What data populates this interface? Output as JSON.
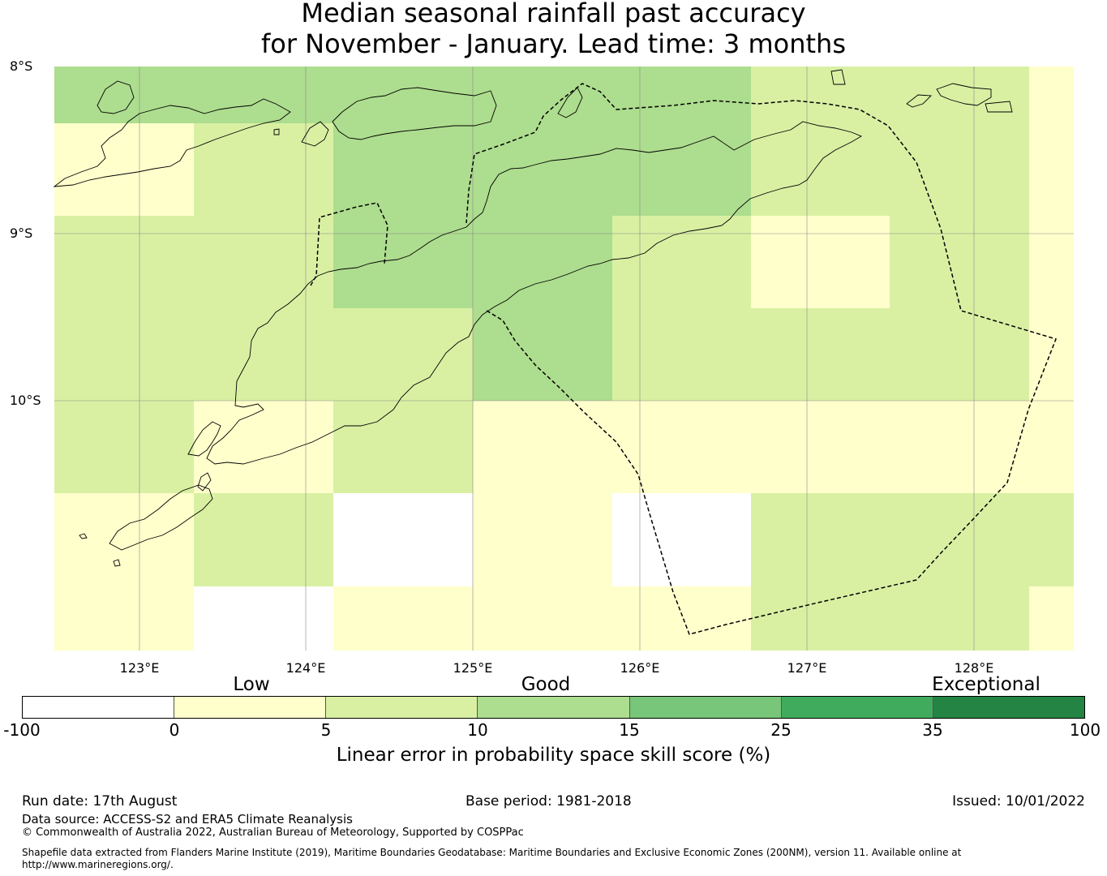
{
  "title_line1": "Median seasonal rainfall past accuracy",
  "title_line2": "for November - January. Lead time: 3 months",
  "map": {
    "lat_labels": [
      "8°S",
      "9°S",
      "10°S"
    ],
    "lon_labels": [
      "123°E",
      "124°E",
      "125°E",
      "126°E",
      "127°E",
      "128°E"
    ],
    "lon_range": [
      122.5,
      128.6
    ],
    "lat_range": [
      -11.5,
      -8.0
    ],
    "grid_cell_deg": 0.833,
    "grid": [
      [
        3,
        3,
        3,
        3,
        3,
        2,
        2,
        1,
        2
      ],
      [
        1,
        2,
        3,
        3,
        3,
        2,
        2,
        1,
        2
      ],
      [
        2,
        2,
        3,
        3,
        2,
        1,
        2,
        1,
        1
      ],
      [
        2,
        2,
        2,
        3,
        2,
        2,
        2,
        1,
        2
      ],
      [
        2,
        1,
        2,
        1,
        1,
        1,
        1,
        1,
        2
      ],
      [
        1,
        2,
        0,
        1,
        0,
        2,
        2,
        2,
        2
      ],
      [
        1,
        0,
        1,
        1,
        1,
        2,
        2,
        1,
        2
      ]
    ],
    "colors": {
      "white": "#ffffff",
      "low": "#ffffcc",
      "mid": "#d9f0a3",
      "good": "#addd8e",
      "good2": "#78c679"
    }
  },
  "colorbar": {
    "categories": [
      "Low",
      "Good",
      "Exceptional"
    ],
    "ticks": [
      "-100",
      "0",
      "5",
      "10",
      "15",
      "25",
      "35",
      "100"
    ],
    "colors": [
      "#ffffff",
      "#ffffcc",
      "#d9f0a3",
      "#addd8e",
      "#78c679",
      "#41ab5d",
      "#238443"
    ],
    "label": "Linear error in probability space skill score (%)"
  },
  "footer": {
    "run_date": "Run date: 17th August",
    "base_period": "Base period: 1981-2018",
    "issued": "Issued: 10/01/2022",
    "data_source": "Data source: ACCESS-S2 and ERA5 Climate Reanalysis",
    "copyright": "© Commonwealth of Australia 2022, Australian Bureau of Meteorology, Supported by COSPPac",
    "shapefile_line1": "Shapefile data extracted from Flanders Marine Institute (2019), Maritime Boundaries Geodatabase: Maritime Boundaries and Exclusive Economic Zones (200NM), version 11. Available online at",
    "shapefile_line2": "http://www.marineregions.org/."
  }
}
